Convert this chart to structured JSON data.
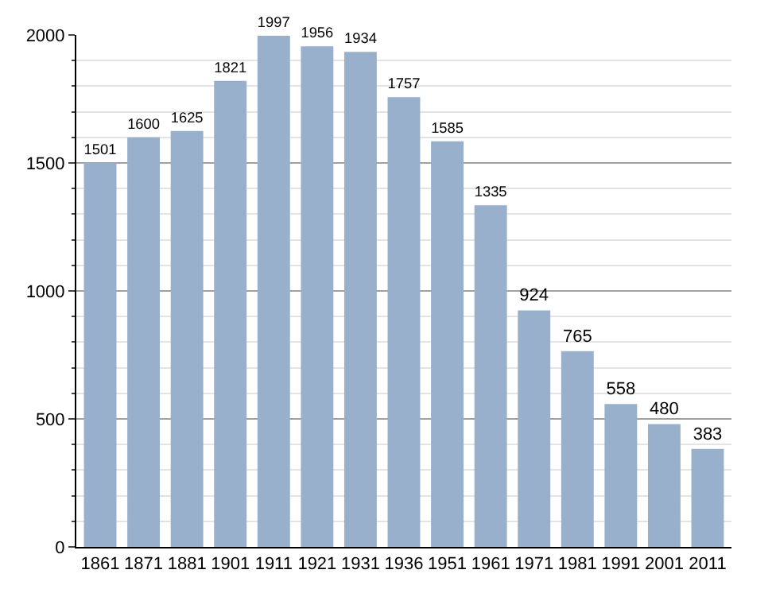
{
  "chart_data": {
    "type": "bar",
    "categories": [
      "1861",
      "1871",
      "1881",
      "1901",
      "1911",
      "1921",
      "1931",
      "1936",
      "1951",
      "1961",
      "1971",
      "1981",
      "1991",
      "2001",
      "2011"
    ],
    "values": [
      1501,
      1600,
      1625,
      1821,
      1997,
      1956,
      1934,
      1757,
      1585,
      1335,
      924,
      765,
      558,
      480,
      383
    ],
    "color": "#98b0cb",
    "ylim": [
      0,
      2000
    ],
    "yticks": [
      0,
      500,
      1000,
      1500,
      2000
    ],
    "grid": "y",
    "data_labels": true
  }
}
